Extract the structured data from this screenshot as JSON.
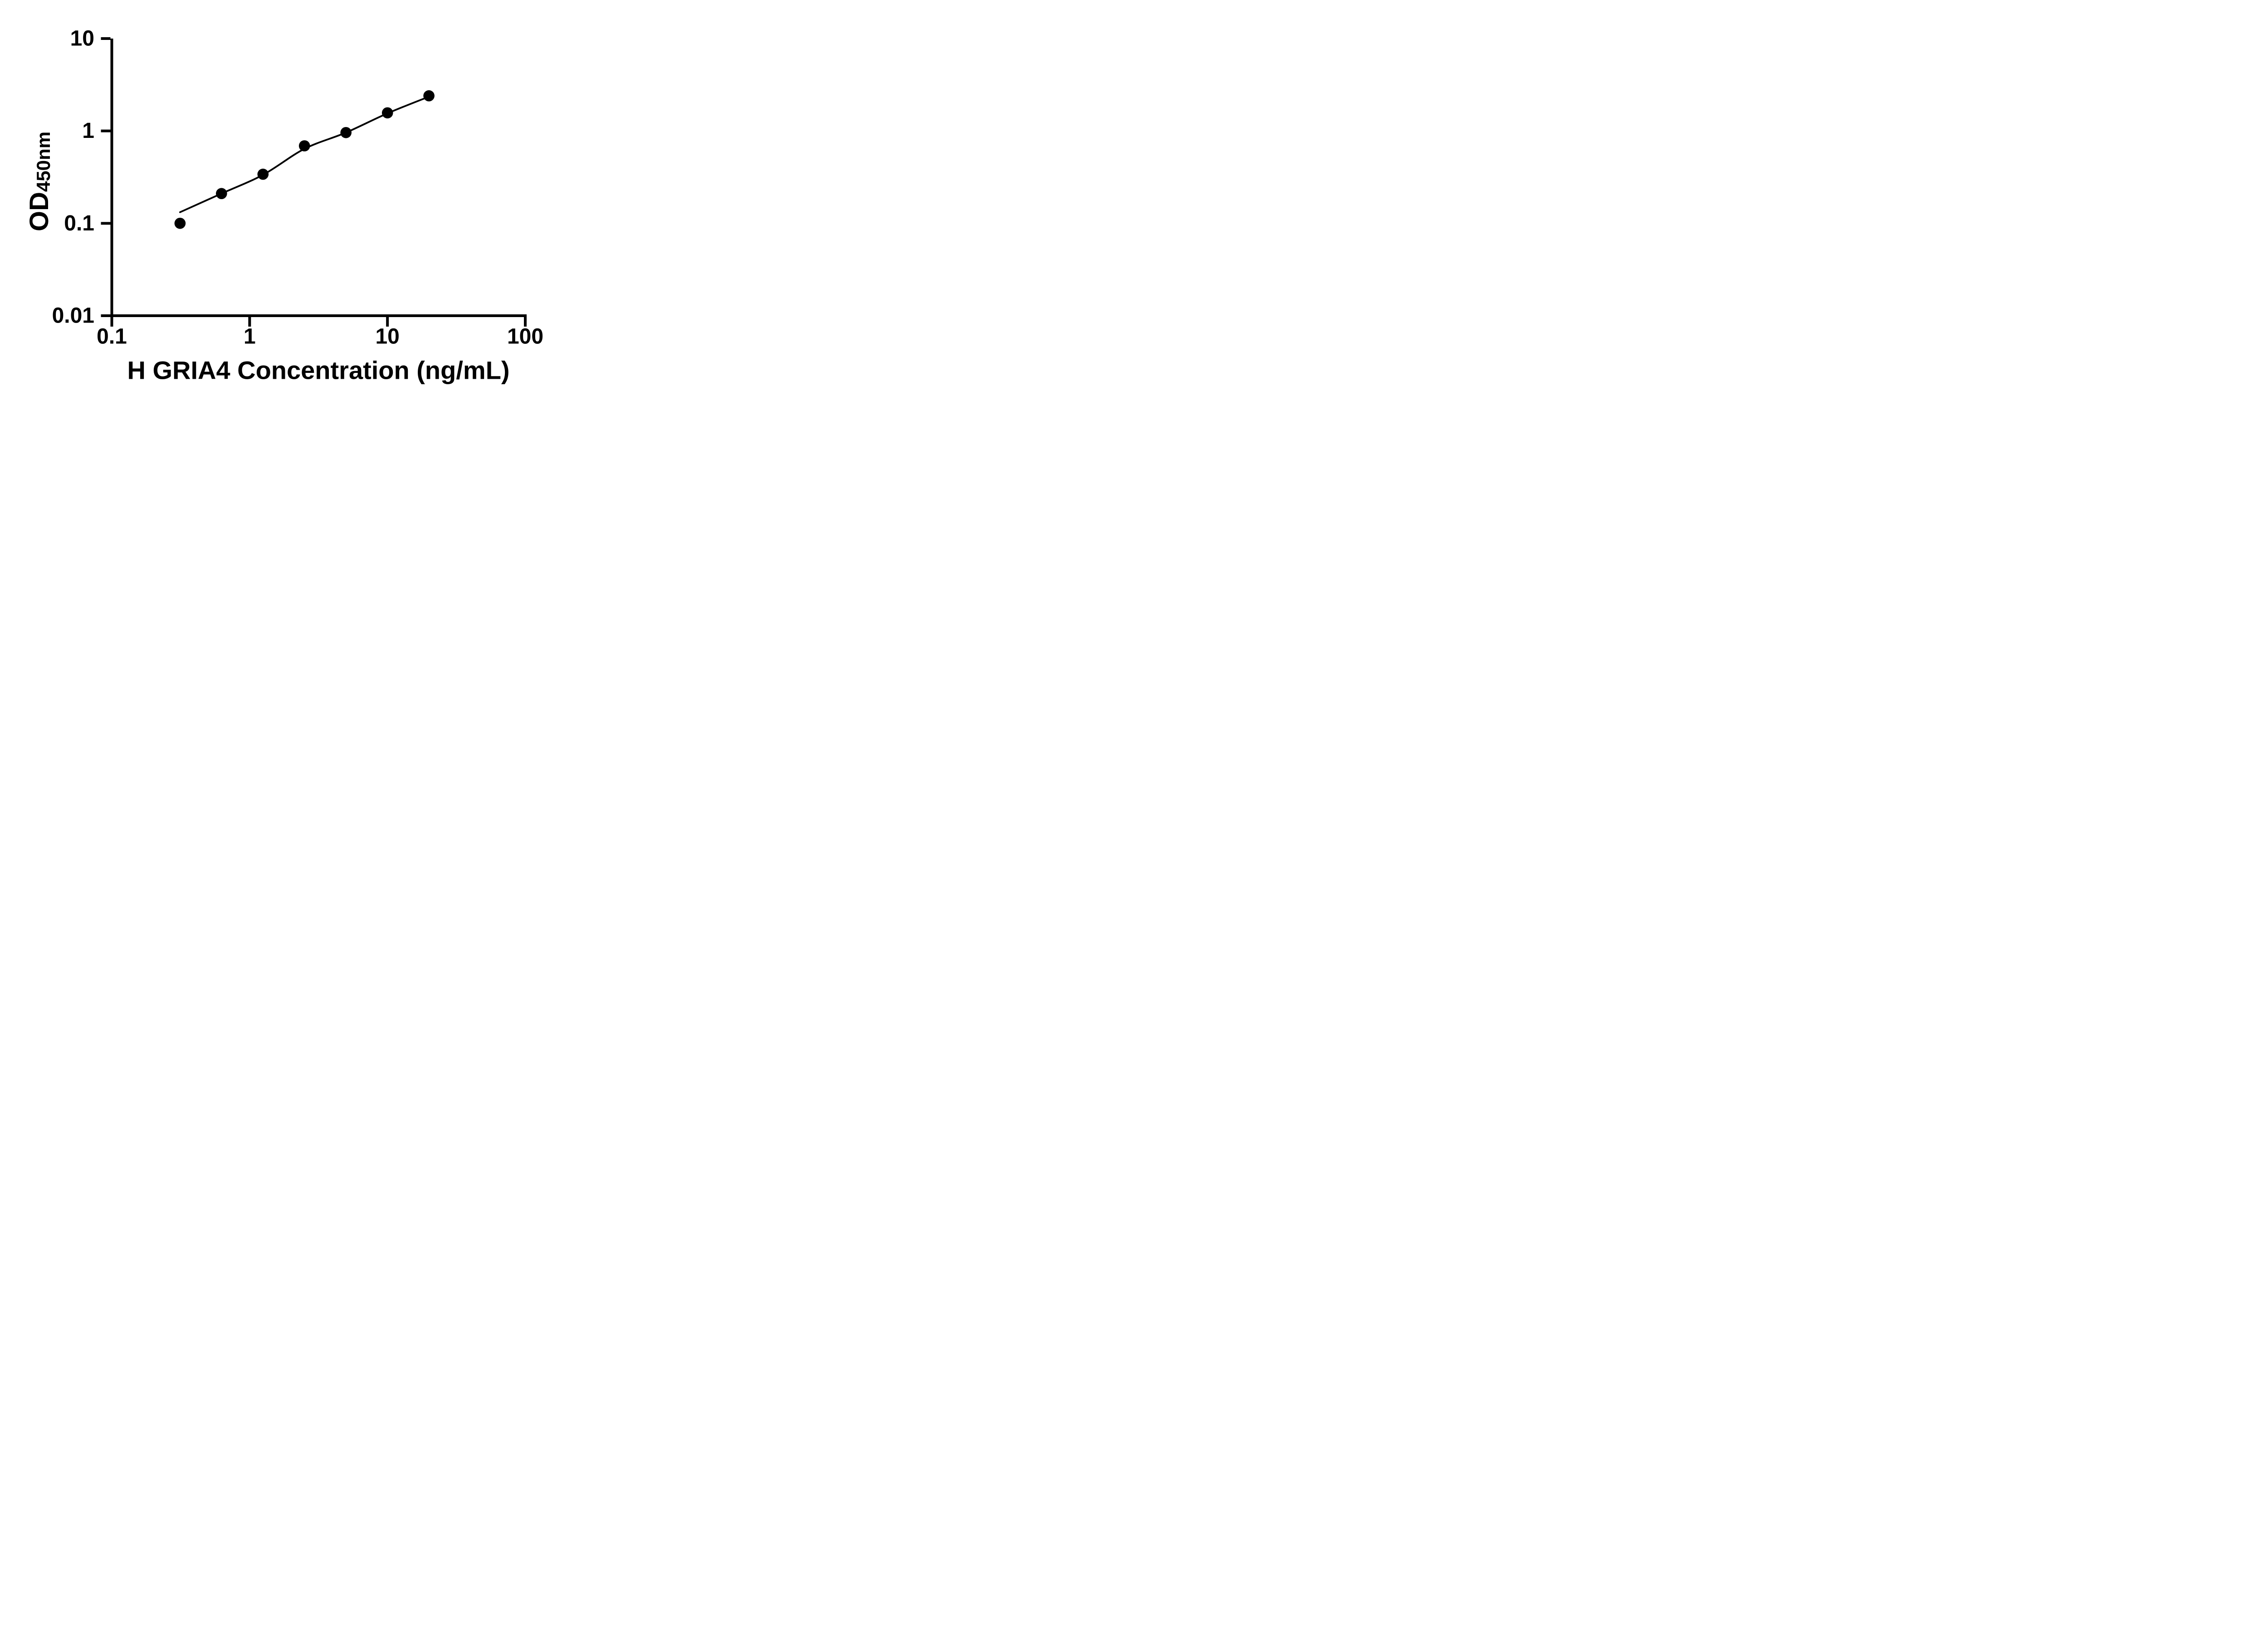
{
  "page": {
    "background_color": "#ffffff",
    "ink_color": "#000000"
  },
  "chart_data": {
    "type": "scatter",
    "title": "",
    "grid": false,
    "legend": null,
    "x_axis": {
      "title": "H GRIA4 Concentration (ng/mL)",
      "scale": "log",
      "min": 0.1,
      "max": 100,
      "tick_labels": [
        "0.1",
        "1",
        "10",
        "100"
      ],
      "tick_values": [
        0.1,
        1,
        10,
        100
      ]
    },
    "y_axis": {
      "title_main": "OD",
      "title_sub": "450nm",
      "scale": "log",
      "min": 0.01,
      "max": 10,
      "tick_labels": [
        "10",
        "1",
        "0.1",
        "0.01"
      ],
      "tick_values": [
        10,
        1,
        0.1,
        0.01
      ]
    },
    "series": [
      {
        "name": "standard-data-points",
        "kind": "scatter",
        "marker": "filled-circle",
        "color": "#000000",
        "points": [
          {
            "x": 0.3125,
            "y": 0.1
          },
          {
            "x": 0.625,
            "y": 0.21
          },
          {
            "x": 1.25,
            "y": 0.34
          },
          {
            "x": 2.5,
            "y": 0.69
          },
          {
            "x": 5,
            "y": 0.96
          },
          {
            "x": 10,
            "y": 1.57
          },
          {
            "x": 20,
            "y": 2.4
          }
        ]
      },
      {
        "name": "fitted-standard-curve",
        "kind": "line",
        "color": "#000000",
        "points": [
          {
            "x": 0.3125,
            "y": 0.132
          },
          {
            "x": 0.625,
            "y": 0.21
          },
          {
            "x": 1.25,
            "y": 0.335
          },
          {
            "x": 2.5,
            "y": 0.64
          },
          {
            "x": 5,
            "y": 0.96
          },
          {
            "x": 10,
            "y": 1.55
          },
          {
            "x": 20,
            "y": 2.35
          }
        ]
      }
    ]
  }
}
